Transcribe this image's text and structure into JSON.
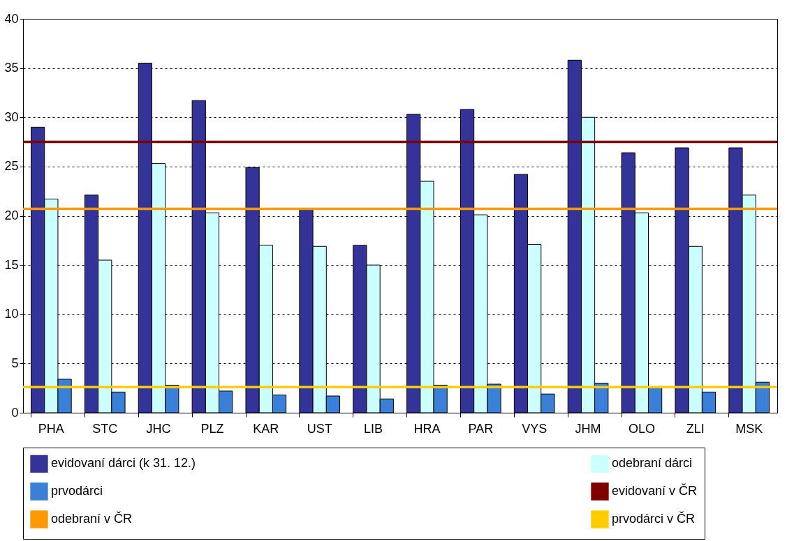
{
  "chart_data": {
    "type": "bar",
    "categories": [
      "PHA",
      "STC",
      "JHC",
      "PLZ",
      "KAR",
      "UST",
      "LIB",
      "HRA",
      "PAR",
      "VYS",
      "JHM",
      "OLO",
      "ZLI",
      "MSK"
    ],
    "series": [
      {
        "name": "evidovaní dárci (k 31. 12.)",
        "color": "#333399",
        "values": [
          29,
          22.1,
          35.5,
          31.7,
          24.9,
          20.7,
          17,
          30.3,
          30.8,
          24.2,
          35.8,
          26.4,
          26.9,
          26.9
        ]
      },
      {
        "name": "odebraní dárci",
        "color": "#ccffff",
        "values": [
          21.7,
          15.5,
          25.3,
          20.3,
          17,
          16.9,
          15,
          23.5,
          20.1,
          17.1,
          30,
          20.3,
          16.9,
          22.1
        ]
      },
      {
        "name": "prvodárci",
        "color": "#3a80d8",
        "values": [
          3.4,
          2.1,
          2.8,
          2.2,
          1.8,
          1.7,
          1.4,
          2.8,
          2.9,
          1.9,
          3,
          2.6,
          2.1,
          3.1
        ]
      }
    ],
    "ref_lines": [
      {
        "axis": "y",
        "value": 27.5,
        "label": "evidovaní v ČR",
        "color": "#800000"
      },
      {
        "axis": "y",
        "value": 20.7,
        "label": "odebraní v ČR",
        "color": "#ff9900"
      },
      {
        "axis": "y",
        "value": 2.6,
        "label": "prvodárci v ČR",
        "color": "#ffcc00"
      }
    ],
    "ylim": [
      0,
      40
    ],
    "yticks": [
      0,
      5,
      10,
      15,
      20,
      25,
      30,
      35,
      40
    ],
    "grid": "y",
    "legend": "bottom"
  }
}
